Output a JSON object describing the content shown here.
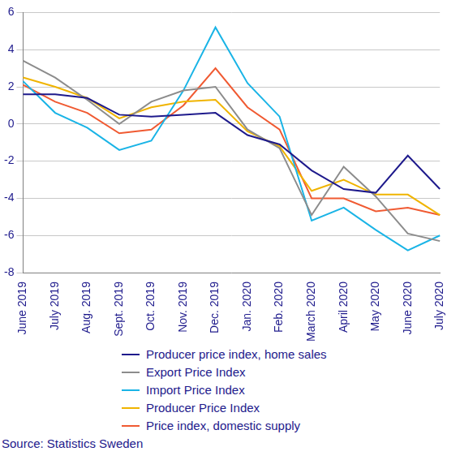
{
  "chart_data": {
    "type": "line",
    "categories": [
      "June 2019",
      "July 2019",
      "Aug. 2019",
      "Sept. 2019",
      "Oct. 2019",
      "Nov. 2019",
      "Dec. 2019",
      "Jan. 2020",
      "Feb. 2020",
      "March 2020",
      "April 2020",
      "May 2020",
      "June 2020",
      "July 2020"
    ],
    "series": [
      {
        "name": "Producer price index, home sales",
        "color": "#1e1a8c",
        "values": [
          1.6,
          1.6,
          1.4,
          0.5,
          0.4,
          0.5,
          0.6,
          -0.6,
          -1.1,
          -2.5,
          -3.5,
          -3.7,
          -1.7,
          -3.5
        ]
      },
      {
        "name": "Export Price Index",
        "color": "#8c8c8c",
        "values": [
          3.4,
          2.5,
          1.3,
          0.0,
          1.2,
          1.8,
          2.0,
          -0.3,
          -1.3,
          -4.9,
          -2.3,
          -3.9,
          -5.9,
          -6.3
        ]
      },
      {
        "name": "Import Price Index",
        "color": "#1ab4e6",
        "values": [
          2.3,
          0.6,
          -0.2,
          -1.4,
          -0.9,
          1.8,
          5.2,
          2.2,
          0.4,
          -5.2,
          -4.5,
          -5.7,
          -6.8,
          -6.0
        ]
      },
      {
        "name": "Producer Price Index",
        "color": "#f0b400",
        "values": [
          2.5,
          2.0,
          1.4,
          0.3,
          0.9,
          1.2,
          1.3,
          -0.4,
          -1.2,
          -3.6,
          -3.0,
          -3.8,
          -3.8,
          -4.9
        ]
      },
      {
        "name": "Price index, domestic supply",
        "color": "#f05a32",
        "values": [
          2.1,
          1.2,
          0.6,
          -0.5,
          -0.3,
          1.0,
          3.0,
          0.9,
          -0.3,
          -4.0,
          -4.0,
          -4.7,
          -4.5,
          -4.9
        ]
      }
    ],
    "ylim": [
      -8,
      6
    ],
    "yticks": [
      -8,
      -6,
      -4,
      -2,
      0,
      2,
      4,
      6
    ],
    "grid": true,
    "legend": "bottom",
    "source": "Source: Statistics Sweden"
  }
}
